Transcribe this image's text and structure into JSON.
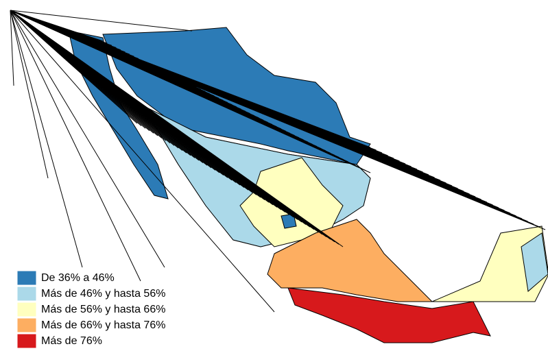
{
  "legend": {
    "items": [
      {
        "label": "De 36% a 46%",
        "color": "#2c7bb6"
      },
      {
        "label": "Más de 46% y hasta 56%",
        "color": "#abd9e9"
      },
      {
        "label": "Más de 56% y hasta 66%",
        "color": "#ffffbf"
      },
      {
        "label": "Más de 66% y hasta 76%",
        "color": "#fdae61"
      },
      {
        "label": "Más de 76%",
        "color": "#d7191c"
      }
    ]
  }
}
